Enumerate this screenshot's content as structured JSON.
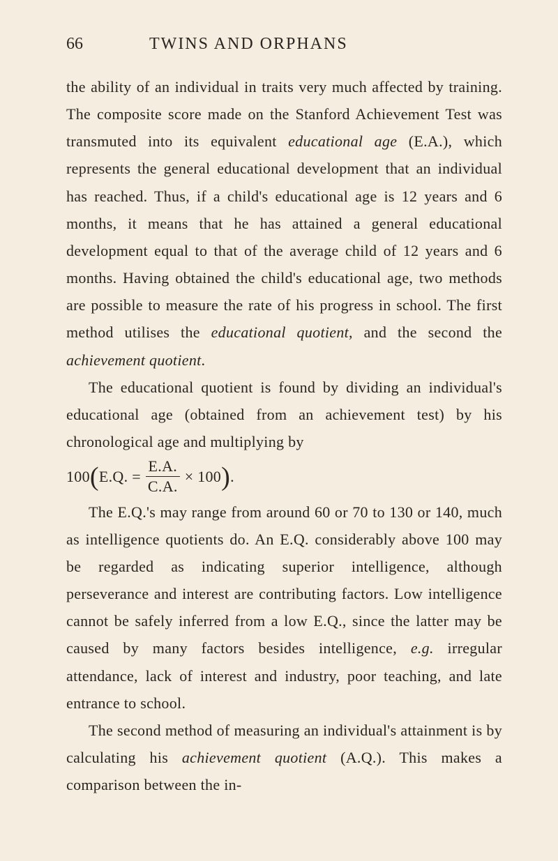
{
  "page": {
    "number": "66",
    "title": "TWINS AND ORPHANS"
  },
  "paragraphs": {
    "p1_part1": "the ability of an individual in traits very much affected by training. The composite score made on the Stanford Achievement Test was transmuted into its equivalent ",
    "p1_term1": "educational age",
    "p1_part2": " (E.A.), which represents the general educational development that an individual has reached. Thus, if a child's educational age is 12 years and 6 months, it means that he has attained a general educational development equal to that of the average child of 12 years and 6 months. Having obtained the child's educational age, two methods are possible to measure the rate of his progress in school. The first method utilises the ",
    "p1_term2": "educational quotient",
    "p1_part3": ", and the second the ",
    "p1_term3": "achievement quotient",
    "p1_part4": ".",
    "p2": "The educational quotient is found by dividing an individual's educational age (obtained from an achievement test) by his chronological age and multiplying by",
    "formula": {
      "prefix": "100 ",
      "lparen": "(",
      "eq_label": "E.Q. = ",
      "numerator": "E.A.",
      "denominator": "C.A.",
      "times": " × 100",
      "rparen": ")",
      "suffix": "."
    },
    "p3_part1": "The E.Q.'s may range from around 60 or 70 to 130 or 140, much as intelligence quotients do. An E.Q. considerably above 100 may be regarded as indicating superior intelligence, although perseverance and interest are contributing factors. Low intelligence cannot be safely inferred from a low E.Q., since the latter may be caused by many factors besides intelligence, ",
    "p3_term1": "e.g.",
    "p3_part2": " irregular attendance, lack of interest and industry, poor teaching, and late entrance to school.",
    "p4_part1": "The second method of measuring an individual's attainment is by calculating his ",
    "p4_term1": "achievement quotient",
    "p4_part2": " (A.Q.). This makes a comparison between the in-"
  },
  "colors": {
    "background": "#f5ede0",
    "text": "#2a2520"
  },
  "typography": {
    "body_fontsize": 22,
    "header_fontsize": 24,
    "line_height": 1.78,
    "font_family": "Caslon/Garamond serif"
  }
}
